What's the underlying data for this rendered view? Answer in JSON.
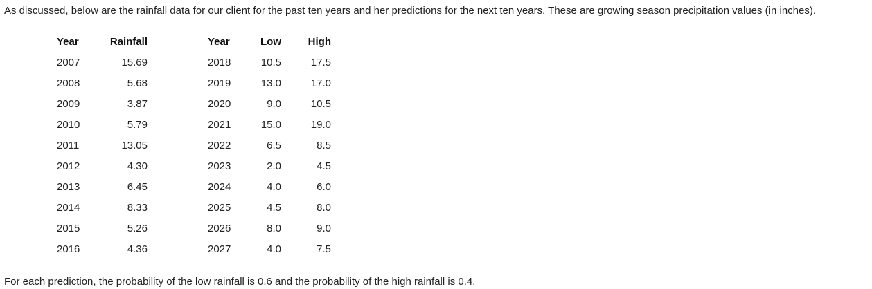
{
  "intro_text": "As discussed, below are the rainfall data for our client for the past ten years and her predictions for the next ten years. These are growing season precipitation values (in inches).",
  "past_table": {
    "headers": {
      "year": "Year",
      "rainfall": "Rainfall"
    },
    "rows": [
      {
        "year": "2007",
        "rainfall": "15.69"
      },
      {
        "year": "2008",
        "rainfall": "5.68"
      },
      {
        "year": "2009",
        "rainfall": "3.87"
      },
      {
        "year": "2010",
        "rainfall": "5.79"
      },
      {
        "year": "2011",
        "rainfall": "13.05"
      },
      {
        "year": "2012",
        "rainfall": "4.30"
      },
      {
        "year": "2013",
        "rainfall": "6.45"
      },
      {
        "year": "2014",
        "rainfall": "8.33"
      },
      {
        "year": "2015",
        "rainfall": "5.26"
      },
      {
        "year": "2016",
        "rainfall": "4.36"
      }
    ]
  },
  "prediction_table": {
    "headers": {
      "year": "Year",
      "low": "Low",
      "high": "High"
    },
    "rows": [
      {
        "year": "2018",
        "low": "10.5",
        "high": "17.5"
      },
      {
        "year": "2019",
        "low": "13.0",
        "high": "17.0"
      },
      {
        "year": "2020",
        "low": "9.0",
        "high": "10.5"
      },
      {
        "year": "2021",
        "low": "15.0",
        "high": "19.0"
      },
      {
        "year": "2022",
        "low": "6.5",
        "high": "8.5"
      },
      {
        "year": "2023",
        "low": "2.0",
        "high": "4.5"
      },
      {
        "year": "2024",
        "low": "4.0",
        "high": "6.0"
      },
      {
        "year": "2025",
        "low": "4.5",
        "high": "8.0"
      },
      {
        "year": "2026",
        "low": "8.0",
        "high": "9.0"
      },
      {
        "year": "2027",
        "low": "4.0",
        "high": "7.5"
      }
    ]
  },
  "footer_text": "For each prediction, the probability of the low rainfall is 0.6 and the probability of the high rainfall is 0.4."
}
